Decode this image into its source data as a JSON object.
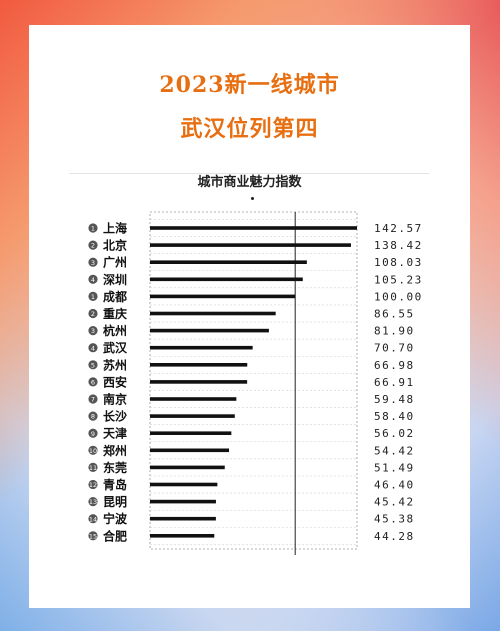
{
  "headline": {
    "line1": "2023新一线城市",
    "line2": "武汉位列第四"
  },
  "colors": {
    "headline": "#e76f12",
    "bar": "#111111",
    "badge": "#555555"
  },
  "chart_data": {
    "type": "bar",
    "orientation": "horizontal",
    "title": "城市商业魅力指数",
    "grid": true,
    "xlim": [
      0,
      150
    ],
    "reference_line": 100,
    "categories": [
      "上海",
      "北京",
      "广州",
      "深圳",
      "成都",
      "重庆",
      "杭州",
      "武汉",
      "苏州",
      "西安",
      "南京",
      "长沙",
      "天津",
      "郑州",
      "东莞",
      "青岛",
      "昆明",
      "宁波",
      "合肥"
    ],
    "rank_badges": [
      "1",
      "2",
      "3",
      "4",
      "1",
      "2",
      "3",
      "4",
      "5",
      "6",
      "7",
      "8",
      "9",
      "10",
      "11",
      "12",
      "13",
      "14",
      "15"
    ],
    "values": [
      142.57,
      138.42,
      108.03,
      105.23,
      100.0,
      86.55,
      81.9,
      70.7,
      66.98,
      66.91,
      59.48,
      58.4,
      56.02,
      54.42,
      51.49,
      46.4,
      45.42,
      45.38,
      44.28
    ],
    "value_labels": [
      "142.57",
      "138.42",
      "108.03",
      "105.23",
      "100.00",
      "86.55",
      "81.90",
      "70.70",
      "66.98",
      "66.91",
      "59.48",
      "58.40",
      "56.02",
      "54.42",
      "51.49",
      "46.40",
      "45.42",
      "45.38",
      "44.28"
    ]
  }
}
